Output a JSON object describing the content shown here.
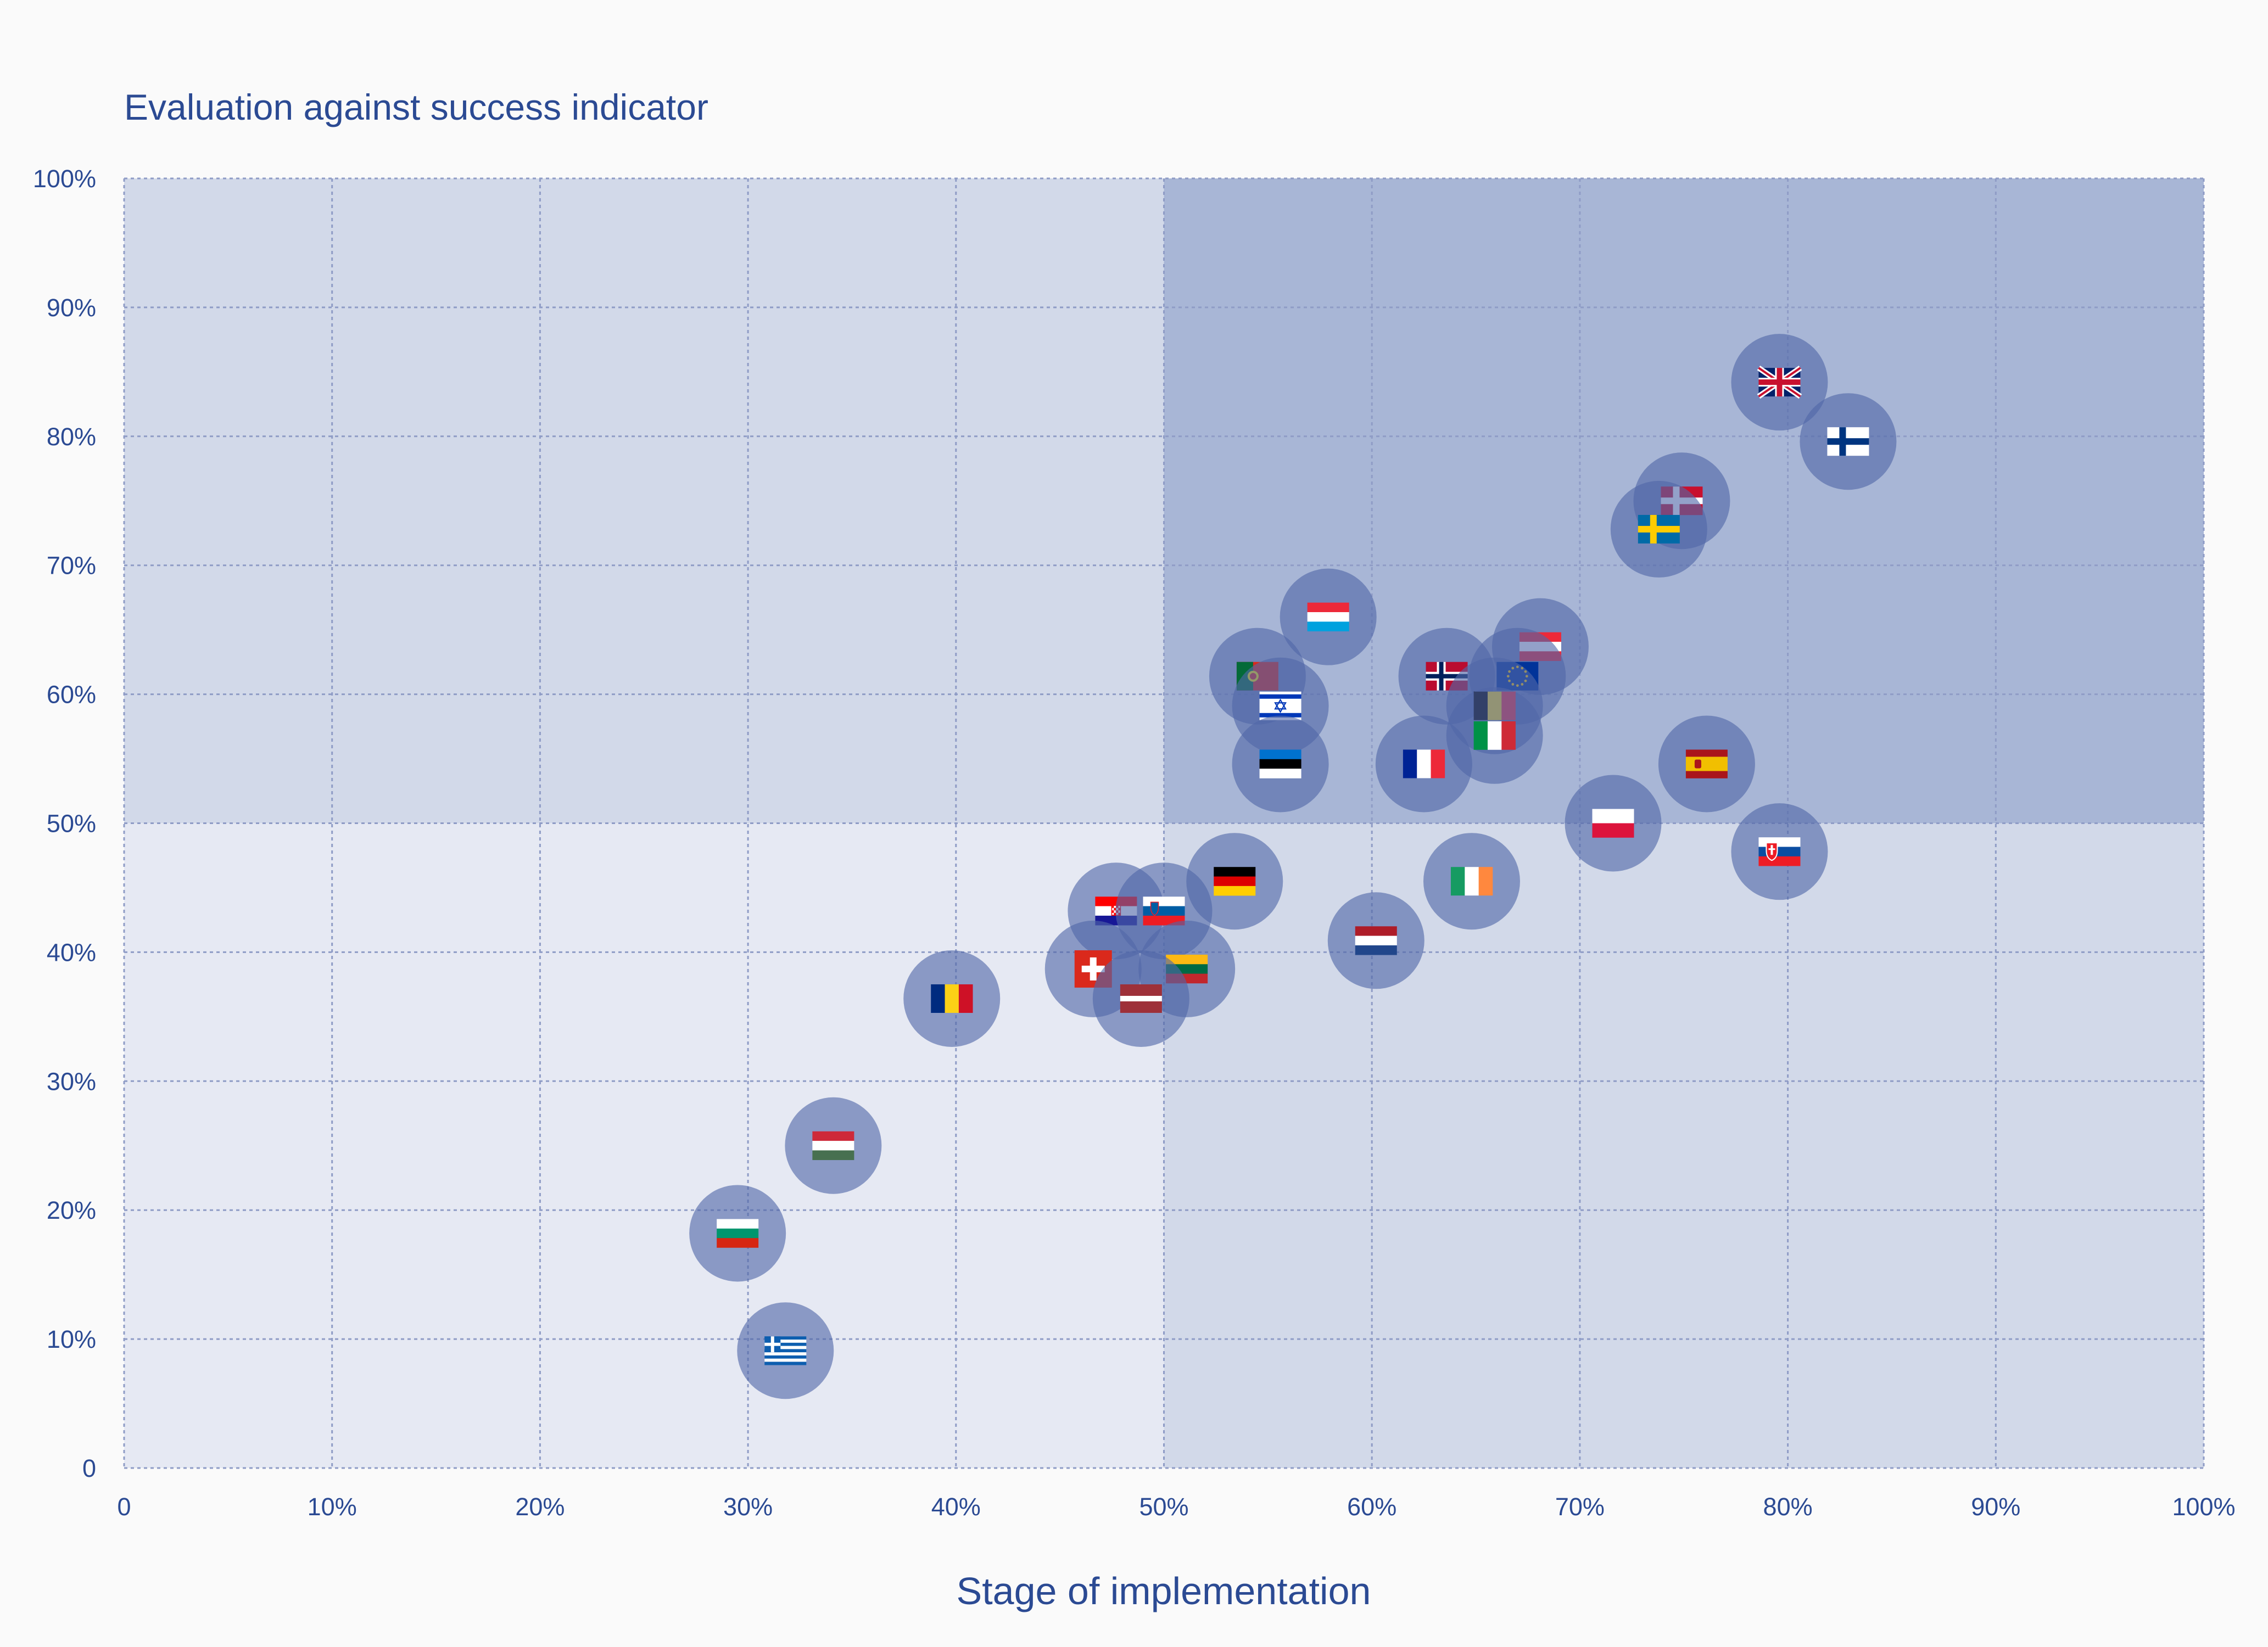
{
  "chart_data": {
    "type": "scatter",
    "title": "Evaluation against success indicator",
    "xlabel": "Stage of implementation",
    "ylabel": "",
    "xlim": [
      0,
      100
    ],
    "ylim": [
      0,
      100
    ],
    "x_ticks": [
      0,
      10,
      20,
      30,
      40,
      50,
      60,
      70,
      80,
      90,
      100
    ],
    "y_ticks": [
      0,
      10,
      20,
      30,
      40,
      50,
      60,
      70,
      80,
      90,
      100
    ],
    "x_tick_labels": [
      "0",
      "10%",
      "20%",
      "30%",
      "40%",
      "50%",
      "60%",
      "70%",
      "80%",
      "90%",
      "100%"
    ],
    "y_tick_labels": [
      "0",
      "10%",
      "20%",
      "30%",
      "40%",
      "50%",
      "60%",
      "70%",
      "80%",
      "90%",
      "100%"
    ],
    "grid": true,
    "quadrant_thresholds": {
      "x": 50,
      "y": 50
    },
    "colors": {
      "region_low": "#e6e9f3",
      "region_mid": "#d2d9e9",
      "region_high": "#a8b6d6",
      "bubble": "#5067a8",
      "text": "#2b4a93",
      "grid": "#8f9cc6"
    },
    "points": [
      {
        "country": "uk",
        "x": 79.6,
        "y": 84.2
      },
      {
        "country": "fi",
        "x": 82.9,
        "y": 79.6
      },
      {
        "country": "dk",
        "x": 74.9,
        "y": 75.0
      },
      {
        "country": "se",
        "x": 73.8,
        "y": 72.8
      },
      {
        "country": "lu",
        "x": 57.9,
        "y": 66.0
      },
      {
        "country": "at",
        "x": 68.1,
        "y": 63.7
      },
      {
        "country": "pt",
        "x": 54.5,
        "y": 61.4
      },
      {
        "country": "no",
        "x": 63.6,
        "y": 61.4
      },
      {
        "country": "eu",
        "x": 67.0,
        "y": 61.4
      },
      {
        "country": "il",
        "x": 55.6,
        "y": 59.1
      },
      {
        "country": "be",
        "x": 65.9,
        "y": 59.1
      },
      {
        "country": "it",
        "x": 65.9,
        "y": 56.8
      },
      {
        "country": "ee",
        "x": 55.6,
        "y": 54.6
      },
      {
        "country": "fr",
        "x": 62.5,
        "y": 54.6
      },
      {
        "country": "es",
        "x": 76.1,
        "y": 54.6
      },
      {
        "country": "pl",
        "x": 71.6,
        "y": 50.0
      },
      {
        "country": "sk",
        "x": 79.6,
        "y": 47.8
      },
      {
        "country": "de",
        "x": 53.4,
        "y": 45.5
      },
      {
        "country": "ie",
        "x": 64.8,
        "y": 45.5
      },
      {
        "country": "hr",
        "x": 47.7,
        "y": 43.2
      },
      {
        "country": "si",
        "x": 50.0,
        "y": 43.2
      },
      {
        "country": "nl",
        "x": 60.2,
        "y": 40.9
      },
      {
        "country": "ch",
        "x": 46.6,
        "y": 38.7
      },
      {
        "country": "lt",
        "x": 51.1,
        "y": 38.7
      },
      {
        "country": "lv",
        "x": 48.9,
        "y": 36.4
      },
      {
        "country": "ro",
        "x": 39.8,
        "y": 36.4
      },
      {
        "country": "hu",
        "x": 34.1,
        "y": 25.0
      },
      {
        "country": "bg",
        "x": 29.5,
        "y": 18.2
      },
      {
        "country": "gr",
        "x": 31.8,
        "y": 9.1
      }
    ]
  }
}
